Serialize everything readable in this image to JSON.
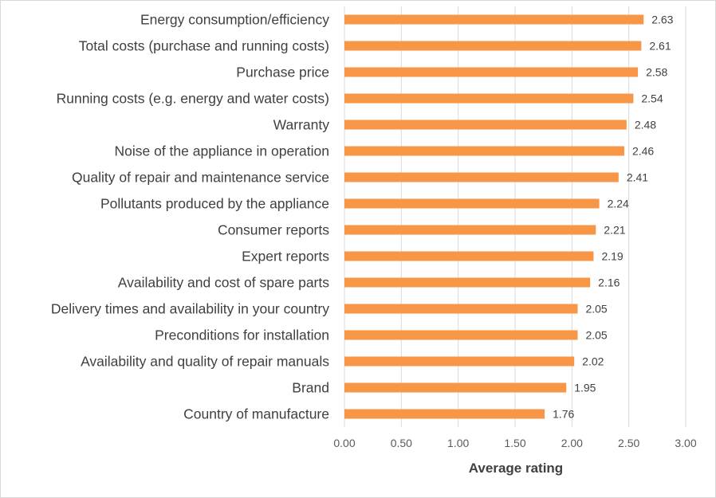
{
  "chart_data": {
    "type": "bar",
    "orientation": "horizontal",
    "categories": [
      "Energy consumption/efficiency",
      "Total costs (purchase and running costs)",
      "Purchase price",
      "Running costs (e.g. energy and water costs)",
      "Warranty",
      "Noise of the appliance in operation",
      "Quality of repair and maintenance service",
      "Pollutants produced by the appliance",
      "Consumer reports",
      "Expert reports",
      "Availability and cost of spare parts",
      "Delivery times and availability in your country",
      "Preconditions for installation",
      "Availability and quality of repair manuals",
      "Brand",
      "Country of manufacture"
    ],
    "values": [
      2.63,
      2.61,
      2.58,
      2.54,
      2.48,
      2.46,
      2.41,
      2.24,
      2.21,
      2.19,
      2.16,
      2.05,
      2.05,
      2.02,
      1.95,
      1.76
    ],
    "value_labels": [
      "2.63",
      "2.61",
      "2.58",
      "2.54",
      "2.48",
      "2.46",
      "2.41",
      "2.24",
      "2.21",
      "2.19",
      "2.16",
      "2.05",
      "2.05",
      "2.02",
      "1.95",
      "1.76"
    ],
    "xlabel": "Average rating",
    "ylabel": "",
    "title": "",
    "xlim": [
      0,
      3
    ],
    "xticks": [
      "0.00",
      "0.50",
      "1.00",
      "1.50",
      "2.00",
      "2.50",
      "3.00"
    ],
    "grid": true,
    "legend": false,
    "bar_color": "#f79646"
  }
}
